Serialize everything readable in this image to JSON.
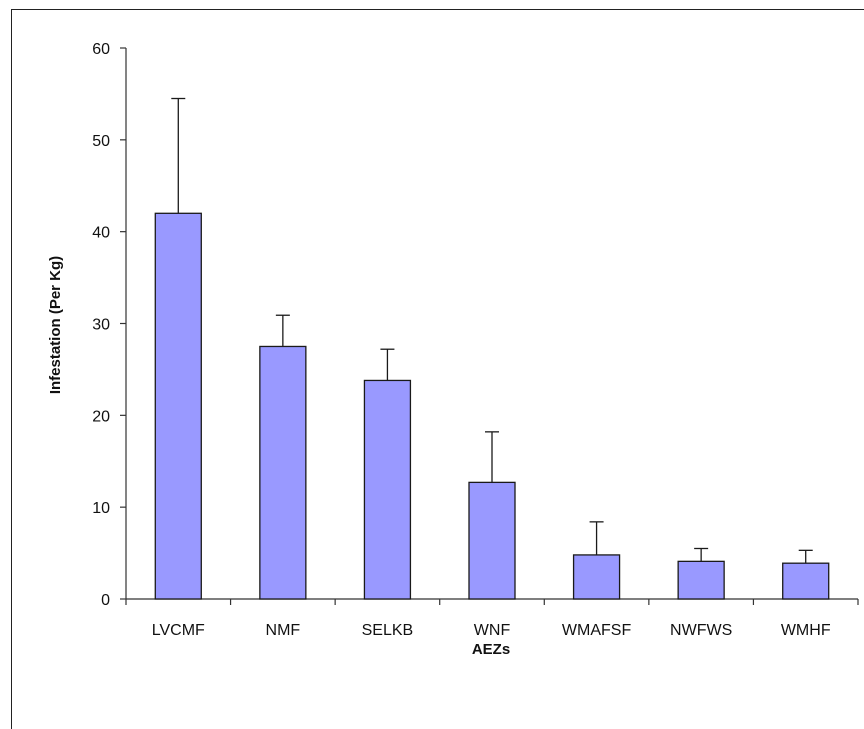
{
  "chart_data": {
    "type": "bar",
    "title": "",
    "xlabel": "AEZs",
    "ylabel": "Infestation (Per Kg)",
    "categories": [
      "LVCMF",
      "NMF",
      "SELKB",
      "WNF",
      "WMAFSF",
      "NWFWS",
      "WMHF"
    ],
    "values": [
      42,
      27.5,
      23.8,
      12.7,
      4.8,
      4.1,
      3.9
    ],
    "error_upper": [
      12.5,
      3.4,
      3.4,
      5.5,
      3.6,
      1.4,
      1.4
    ],
    "ylim": [
      0,
      60
    ],
    "yticks": [
      0,
      10,
      20,
      30,
      40,
      50,
      60
    ],
    "grid": false,
    "legend": "none",
    "colors": {
      "bar_fill": "#9999ff",
      "bar_stroke": "#1a1a1a",
      "axis": "#333333"
    }
  }
}
